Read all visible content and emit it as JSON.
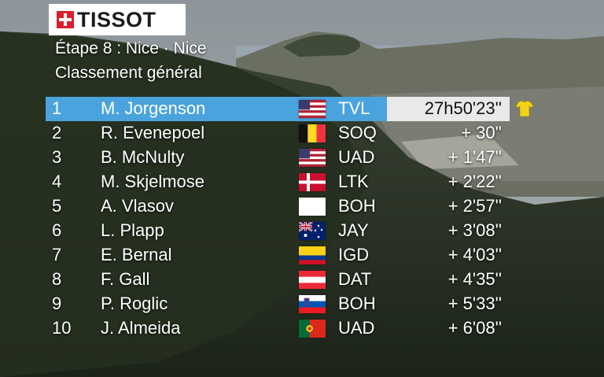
{
  "brand": "TISSOT",
  "stage_title": "Étape 8 : Nice · Nice",
  "classification_title": "Classement général",
  "colors": {
    "leader_bar": "#4aa3dd",
    "time_box": "#e9e9e9",
    "jersey": "#f3d31a",
    "logo_red": "#d8202c"
  },
  "standings": [
    {
      "rank": "1",
      "name": "M. Jorgenson",
      "team": "TVL",
      "time": "27h50'23''",
      "flag": "usa",
      "leader": true,
      "jersey": "yellow-jersey-icon"
    },
    {
      "rank": "2",
      "name": "R. Evenepoel",
      "team": "SOQ",
      "time": "+ 30''",
      "flag": "belgium"
    },
    {
      "rank": "3",
      "name": "B. McNulty",
      "team": "UAD",
      "time": "+ 1'47''",
      "flag": "usa"
    },
    {
      "rank": "4",
      "name": "M. Skjelmose",
      "team": "LTK",
      "time": "+ 2'22''",
      "flag": "denmark"
    },
    {
      "rank": "5",
      "name": "A. Vlasov",
      "team": "BOH",
      "time": "+ 2'57''",
      "flag": "neutral"
    },
    {
      "rank": "6",
      "name": "L. Plapp",
      "team": "JAY",
      "time": "+ 3'08''",
      "flag": "australia"
    },
    {
      "rank": "7",
      "name": "E. Bernal",
      "team": "IGD",
      "time": "+ 4'03''",
      "flag": "colombia"
    },
    {
      "rank": "8",
      "name": "F. Gall",
      "team": "DAT",
      "time": "+ 4'35''",
      "flag": "austria"
    },
    {
      "rank": "9",
      "name": "P. Roglic",
      "team": "BOH",
      "time": "+ 5'33''",
      "flag": "slovenia"
    },
    {
      "rank": "10",
      "name": "J. Almeida",
      "team": "UAD",
      "time": "+ 6'08''",
      "flag": "portugal"
    }
  ]
}
